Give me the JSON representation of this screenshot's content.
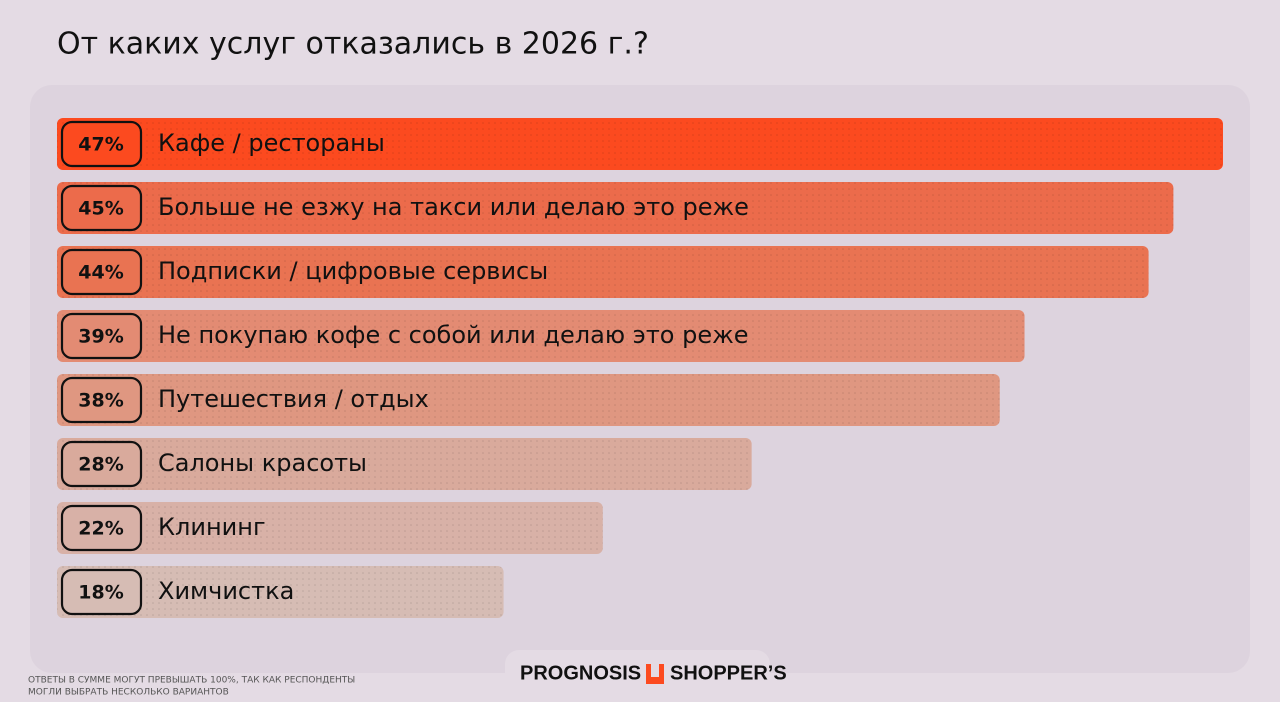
{
  "chart_data": {
    "type": "bar",
    "orientation": "horizontal",
    "title": "От каких услуг отказались в 2026 г.?",
    "categories": [
      "Кафе / рестораны",
      "Больше не езжу на такси или делаю это реже",
      "Подписки / цифровые сервисы",
      "Не покупаю кофе с собой или делаю это реже",
      "Путешествия / отдых",
      "Салоны красоты",
      "Клининг",
      "Химчистка"
    ],
    "values": [
      47,
      45,
      44,
      39,
      38,
      28,
      22,
      18
    ],
    "value_labels": [
      "47%",
      "45%",
      "44%",
      "39%",
      "38%",
      "28%",
      "22%",
      "18%"
    ],
    "colors": [
      "#fc4a1f",
      "#ec6b4b",
      "#e97352",
      "#e38b73",
      "#df9781",
      "#d9aa9c",
      "#d8b1a7",
      "#d6bcb4"
    ],
    "footnote": [
      "ОТВЕТЫ В СУММЕ МОГУТ ПРЕВЫШАТЬ 100%, ТАК КАК РЕСПОНДЕНТЫ",
      "МОГЛИ ВЫБРАТЬ НЕСКОЛЬКО ВАРИАНТОВ"
    ],
    "logos": [
      "PROGNOSIS",
      "SHOPPER’S"
    ]
  }
}
